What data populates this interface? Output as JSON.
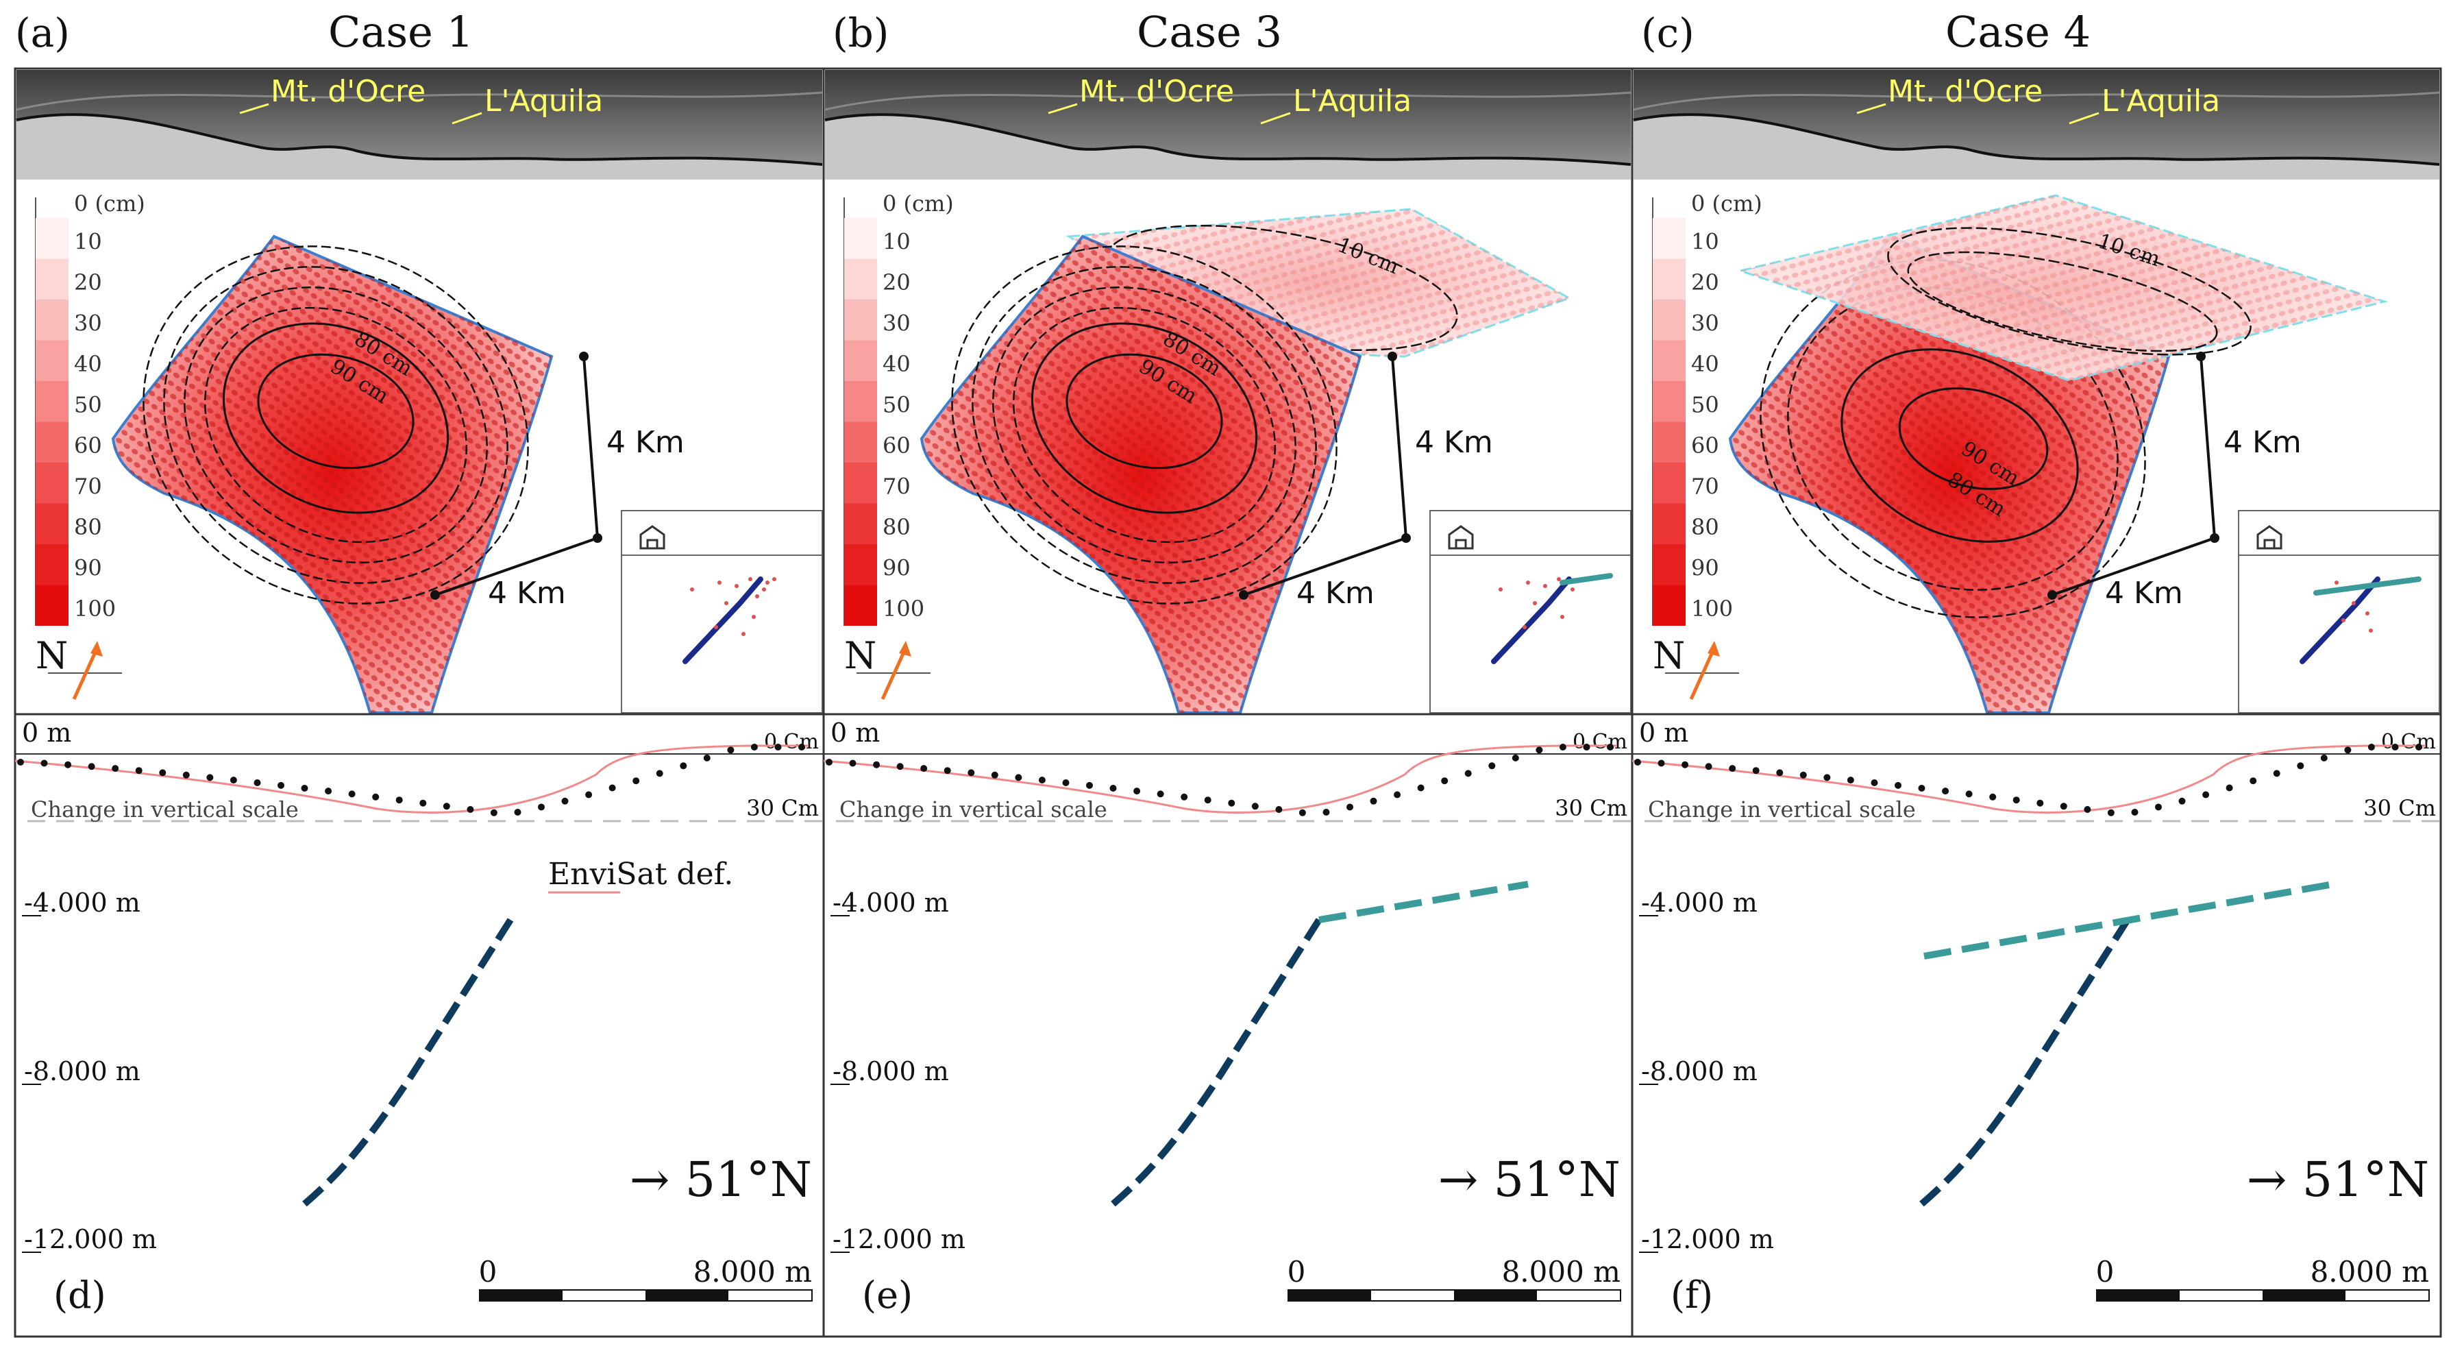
{
  "panels": [
    {
      "id": "case1",
      "top_letter": "(a)",
      "title": "Case 1",
      "bottom_letter": "(d)",
      "place_labels": [
        "Mt. d'Ocre",
        "L'Aquila"
      ],
      "contour_labels": [
        "80 cm",
        "90 cm"
      ],
      "has_upper_fault": false,
      "legend_show_envisat": true
    },
    {
      "id": "case3",
      "top_letter": "(b)",
      "title": "Case 3",
      "bottom_letter": "(e)",
      "place_labels": [
        "Mt. d'Ocre",
        "L'Aquila"
      ],
      "contour_labels": [
        "10 cm",
        "80 cm",
        "90 cm"
      ],
      "has_upper_fault": true,
      "legend_show_envisat": false
    },
    {
      "id": "case4",
      "top_letter": "(c)",
      "title": "Case 4",
      "bottom_letter": "(f)",
      "place_labels": [
        "Mt. d'Ocre",
        "L'Aquila"
      ],
      "contour_labels": [
        "10 cm",
        "90 cm",
        "80 cm"
      ],
      "has_upper_fault": true,
      "legend_show_envisat": false
    }
  ],
  "colorbar": {
    "unit_label": "0 (cm)",
    "ticks": [
      "10",
      "20",
      "30",
      "40",
      "50",
      "60",
      "70",
      "80",
      "90",
      "100"
    ],
    "colors": [
      "#fff0f0",
      "#fdd6d6",
      "#fbbcbc",
      "#f9a2a2",
      "#f78686",
      "#f46a6a",
      "#f04f4f",
      "#ec3636",
      "#e81f1f",
      "#e30c0c"
    ]
  },
  "map_scale": {
    "vertical": "4 Km",
    "horizontal": "4 Km"
  },
  "north_label": "N",
  "profile": {
    "top_left": "0 m",
    "top_right": "0 Cm",
    "scale_right": "30 Cm",
    "scale_change": "Change in vertical scale",
    "envisat_label": "EnviSat def."
  },
  "section": {
    "depths": [
      "-4.000 m",
      "-8.000 m",
      "-12.000 m"
    ],
    "direction": "→ 51°N",
    "scalebar_start": "0",
    "scalebar_end": "8.000 m"
  },
  "colors": {
    "lower_fault": "#0e3a5e",
    "upper_fault": "#3b9a9a",
    "envisat_line": "#f08a8a",
    "profile_dots": "#111111",
    "map_outline": "#3a7fd0",
    "upper_outline": "#7fe0ec",
    "place_label": "#ffff66"
  }
}
